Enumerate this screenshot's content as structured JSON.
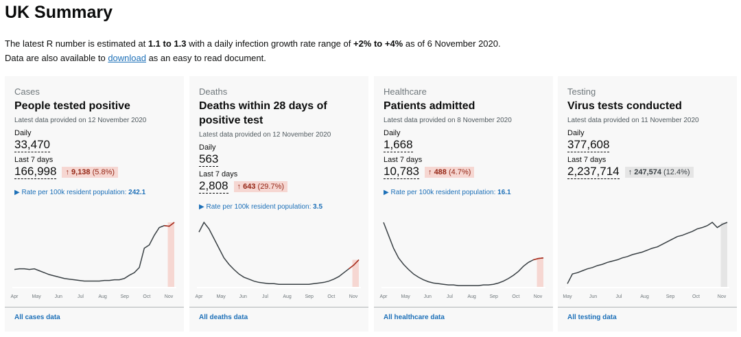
{
  "title": "UK Summary",
  "intro": {
    "p1_a": "The latest R number is estimated at ",
    "r": "1.1 to 1.3",
    "p1_b": " with a daily infection growth rate range of ",
    "growth": "+2% to +4%",
    "p1_c": " as of 6 November 2020.",
    "p2_a": "Data are also available to ",
    "download": "download",
    "p2_b": " as an easy to read document."
  },
  "colors": {
    "red_line": "#b32d1c",
    "highlight": "#f6d7d2",
    "grey_highlight": "#e5e5e5",
    "line": "#383f43",
    "link": "#1d70b8"
  },
  "cards": [
    {
      "category": "Cases",
      "title": "People tested positive",
      "latest": "Latest data provided on 12 November 2020",
      "daily_label": "Daily",
      "daily": "33,470",
      "week_label": "Last 7 days",
      "week": "166,998",
      "arrow": "↑",
      "change": "9,138",
      "pct": "(5.8%)",
      "trend": "up-bad",
      "rate_label": "Rate per 100k resident population: ",
      "rate": "242.1",
      "link": "All cases data",
      "months": [
        "Apr",
        "May",
        "Jun",
        "Jul",
        "Aug",
        "Sep",
        "Oct",
        "Nov"
      ],
      "series": [
        27,
        28,
        28,
        27,
        28,
        25,
        22,
        19,
        17,
        15,
        13,
        12,
        11,
        10,
        9,
        9,
        9,
        9,
        10,
        10,
        11,
        11,
        13,
        18,
        22,
        30,
        60,
        65,
        80,
        92,
        95,
        94,
        100
      ]
    },
    {
      "category": "Deaths",
      "title": "Deaths within 28 days of positive test",
      "latest": "Latest data provided on 12 November 2020",
      "daily_label": "Daily",
      "daily": "563",
      "week_label": "Last 7 days",
      "week": "2,808",
      "arrow": "↑",
      "change": "643",
      "pct": "(29.7%)",
      "trend": "up-bad",
      "rate_label": "Rate per 100k resident population: ",
      "rate": "3.5",
      "link": "All deaths data",
      "months": [
        "Apr",
        "May",
        "Jun",
        "Jul",
        "Aug",
        "Sep",
        "Oct",
        "Nov"
      ],
      "series": [
        85,
        100,
        90,
        75,
        60,
        45,
        35,
        27,
        20,
        15,
        12,
        9,
        7,
        6,
        5,
        5,
        4,
        4,
        4,
        4,
        4,
        4,
        4,
        5,
        6,
        7,
        9,
        12,
        16,
        22,
        28,
        34,
        42
      ]
    },
    {
      "category": "Healthcare",
      "title": "Patients admitted",
      "latest": "Latest data provided on 8 November 2020",
      "daily_label": "Daily",
      "daily": "1,668",
      "week_label": "Last 7 days",
      "week": "10,783",
      "arrow": "↑",
      "change": "488",
      "pct": "(4.7%)",
      "trend": "up-bad",
      "rate_label": "Rate per 100k resident population: ",
      "rate": "16.1",
      "link": "All healthcare data",
      "months": [
        "Apr",
        "May",
        "Jun",
        "Jul",
        "Aug",
        "Sep",
        "Oct",
        "Nov"
      ],
      "series": [
        100,
        80,
        60,
        45,
        35,
        27,
        20,
        15,
        11,
        8,
        6,
        5,
        4,
        3,
        3,
        2,
        2,
        2,
        2,
        2,
        3,
        3,
        4,
        6,
        9,
        13,
        18,
        24,
        32,
        38,
        42,
        44,
        45
      ]
    },
    {
      "category": "Testing",
      "title": "Virus tests conducted",
      "latest": "Latest data provided on 11 November 2020",
      "daily_label": "Daily",
      "daily": "377,608",
      "week_label": "Last 7 days",
      "week": "2,237,714",
      "arrow": "↑",
      "change": "247,574",
      "pct": "(12.4%)",
      "trend": "up-neutral",
      "link": "All testing data",
      "months": [
        "May",
        "Jun",
        "Jul",
        "Aug",
        "Sep",
        "Oct",
        "Nov"
      ],
      "series": [
        5,
        20,
        22,
        25,
        28,
        30,
        33,
        35,
        38,
        40,
        42,
        45,
        47,
        50,
        52,
        54,
        57,
        60,
        62,
        66,
        70,
        74,
        78,
        80,
        83,
        86,
        90,
        92,
        95,
        100,
        92,
        97,
        100
      ]
    }
  ]
}
